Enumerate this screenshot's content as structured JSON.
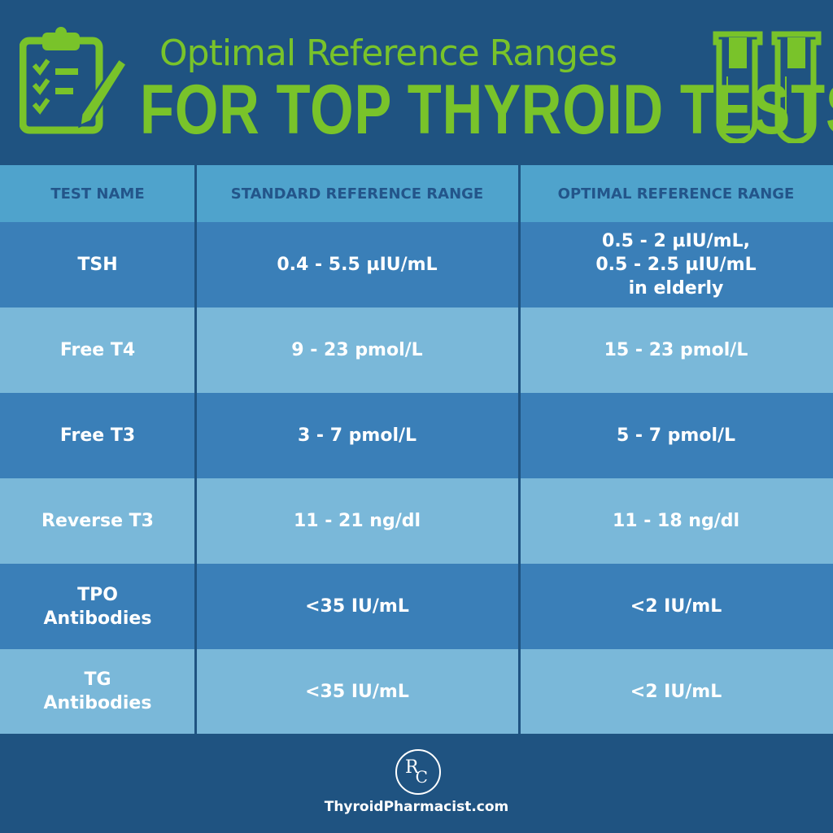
{
  "header": {
    "title_line1": "Optimal Reference Ranges",
    "title_line2": "FOR TOP THYROID TESTS"
  },
  "colors": {
    "background": "#1f5381",
    "accent_green": "#79c32a",
    "header_row": "#4fa3cc",
    "row_dark": "#3a7fb8",
    "row_light": "#7ab8d9"
  },
  "table": {
    "columns": [
      "TEST NAME",
      "STANDARD REFERENCE RANGE",
      "OPTIMAL REFERENCE RANGE"
    ],
    "rows": [
      {
        "test": "TSH",
        "standard": "0.4 - 5.5 µIU/mL",
        "optimal": "0.5 - 2 µIU/mL,\n0.5 - 2.5 µIU/mL\nin elderly"
      },
      {
        "test": "Free T4",
        "standard": "9 - 23 pmol/L",
        "optimal": "15 - 23 pmol/L"
      },
      {
        "test": "Free T3",
        "standard": "3 - 7 pmol/L",
        "optimal": "5 - 7 pmol/L"
      },
      {
        "test": "Reverse T3",
        "standard": "11 - 21 ng/dl",
        "optimal": "11 - 18 ng/dl"
      },
      {
        "test": "TPO\nAntibodies",
        "standard": "<35 IU/mL",
        "optimal": "<2 IU/mL"
      },
      {
        "test": "TG\nAntibodies",
        "standard": "<35 IU/mL",
        "optimal": "<2 IU/mL"
      }
    ]
  },
  "footer": {
    "logo": "RC",
    "website": "ThyroidPharmacist.com"
  }
}
